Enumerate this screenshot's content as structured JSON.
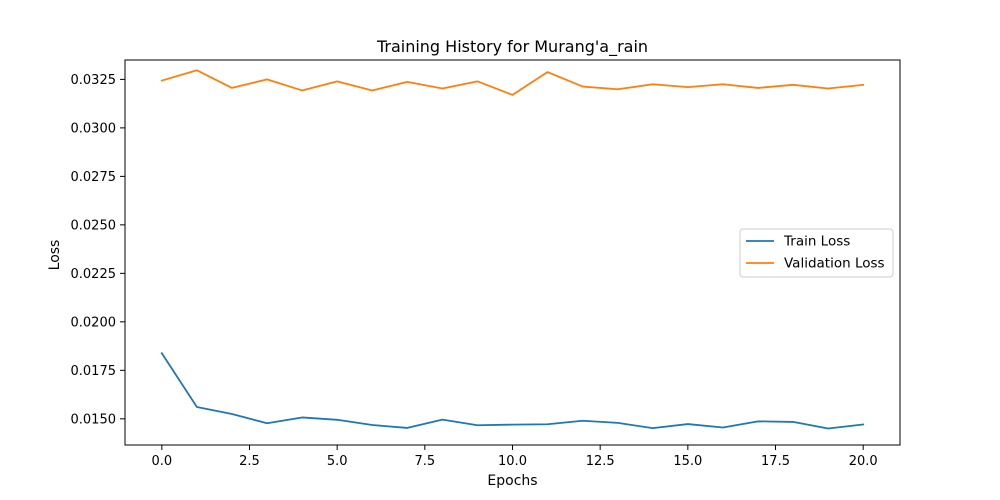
{
  "chart_data": {
    "type": "line",
    "title": "Training History for Murang'a_rain",
    "xlabel": "Epochs",
    "ylabel": "Loss",
    "xlim": [
      -1.05,
      21.05
    ],
    "ylim": [
      0.01365,
      0.0335
    ],
    "xticks": [
      0.0,
      2.5,
      5.0,
      7.5,
      10.0,
      12.5,
      15.0,
      17.5,
      20.0
    ],
    "xtick_labels": [
      "0.0",
      "2.5",
      "5.0",
      "7.5",
      "10.0",
      "12.5",
      "15.0",
      "17.5",
      "20.0"
    ],
    "yticks": [
      0.015,
      0.0175,
      0.02,
      0.0225,
      0.025,
      0.0275,
      0.03,
      0.0325
    ],
    "ytick_labels": [
      "0.0150",
      "0.0175",
      "0.0200",
      "0.0225",
      "0.0250",
      "0.0275",
      "0.0300",
      "0.0325"
    ],
    "grid": false,
    "legend_position": "center-right",
    "x": [
      0,
      1,
      2,
      3,
      4,
      5,
      6,
      7,
      8,
      9,
      10,
      11,
      12,
      13,
      14,
      15,
      16,
      17,
      18,
      19,
      20
    ],
    "series": [
      {
        "name": "Train Loss",
        "color": "#1f77b4",
        "values": [
          0.01838,
          0.01561,
          0.01525,
          0.01477,
          0.01507,
          0.01495,
          0.01468,
          0.01453,
          0.01496,
          0.01467,
          0.0147,
          0.01472,
          0.0149,
          0.01479,
          0.01452,
          0.01473,
          0.01455,
          0.01487,
          0.01484,
          0.0145,
          0.01471
        ]
      },
      {
        "name": "Validation Loss",
        "color": "#ff7f0e",
        "values": [
          0.03244,
          0.03297,
          0.03206,
          0.0325,
          0.03193,
          0.0324,
          0.03193,
          0.03237,
          0.03203,
          0.0324,
          0.0317,
          0.03288,
          0.03213,
          0.03199,
          0.03225,
          0.0321,
          0.03225,
          0.03206,
          0.03222,
          0.03203,
          0.03222
        ]
      }
    ]
  }
}
